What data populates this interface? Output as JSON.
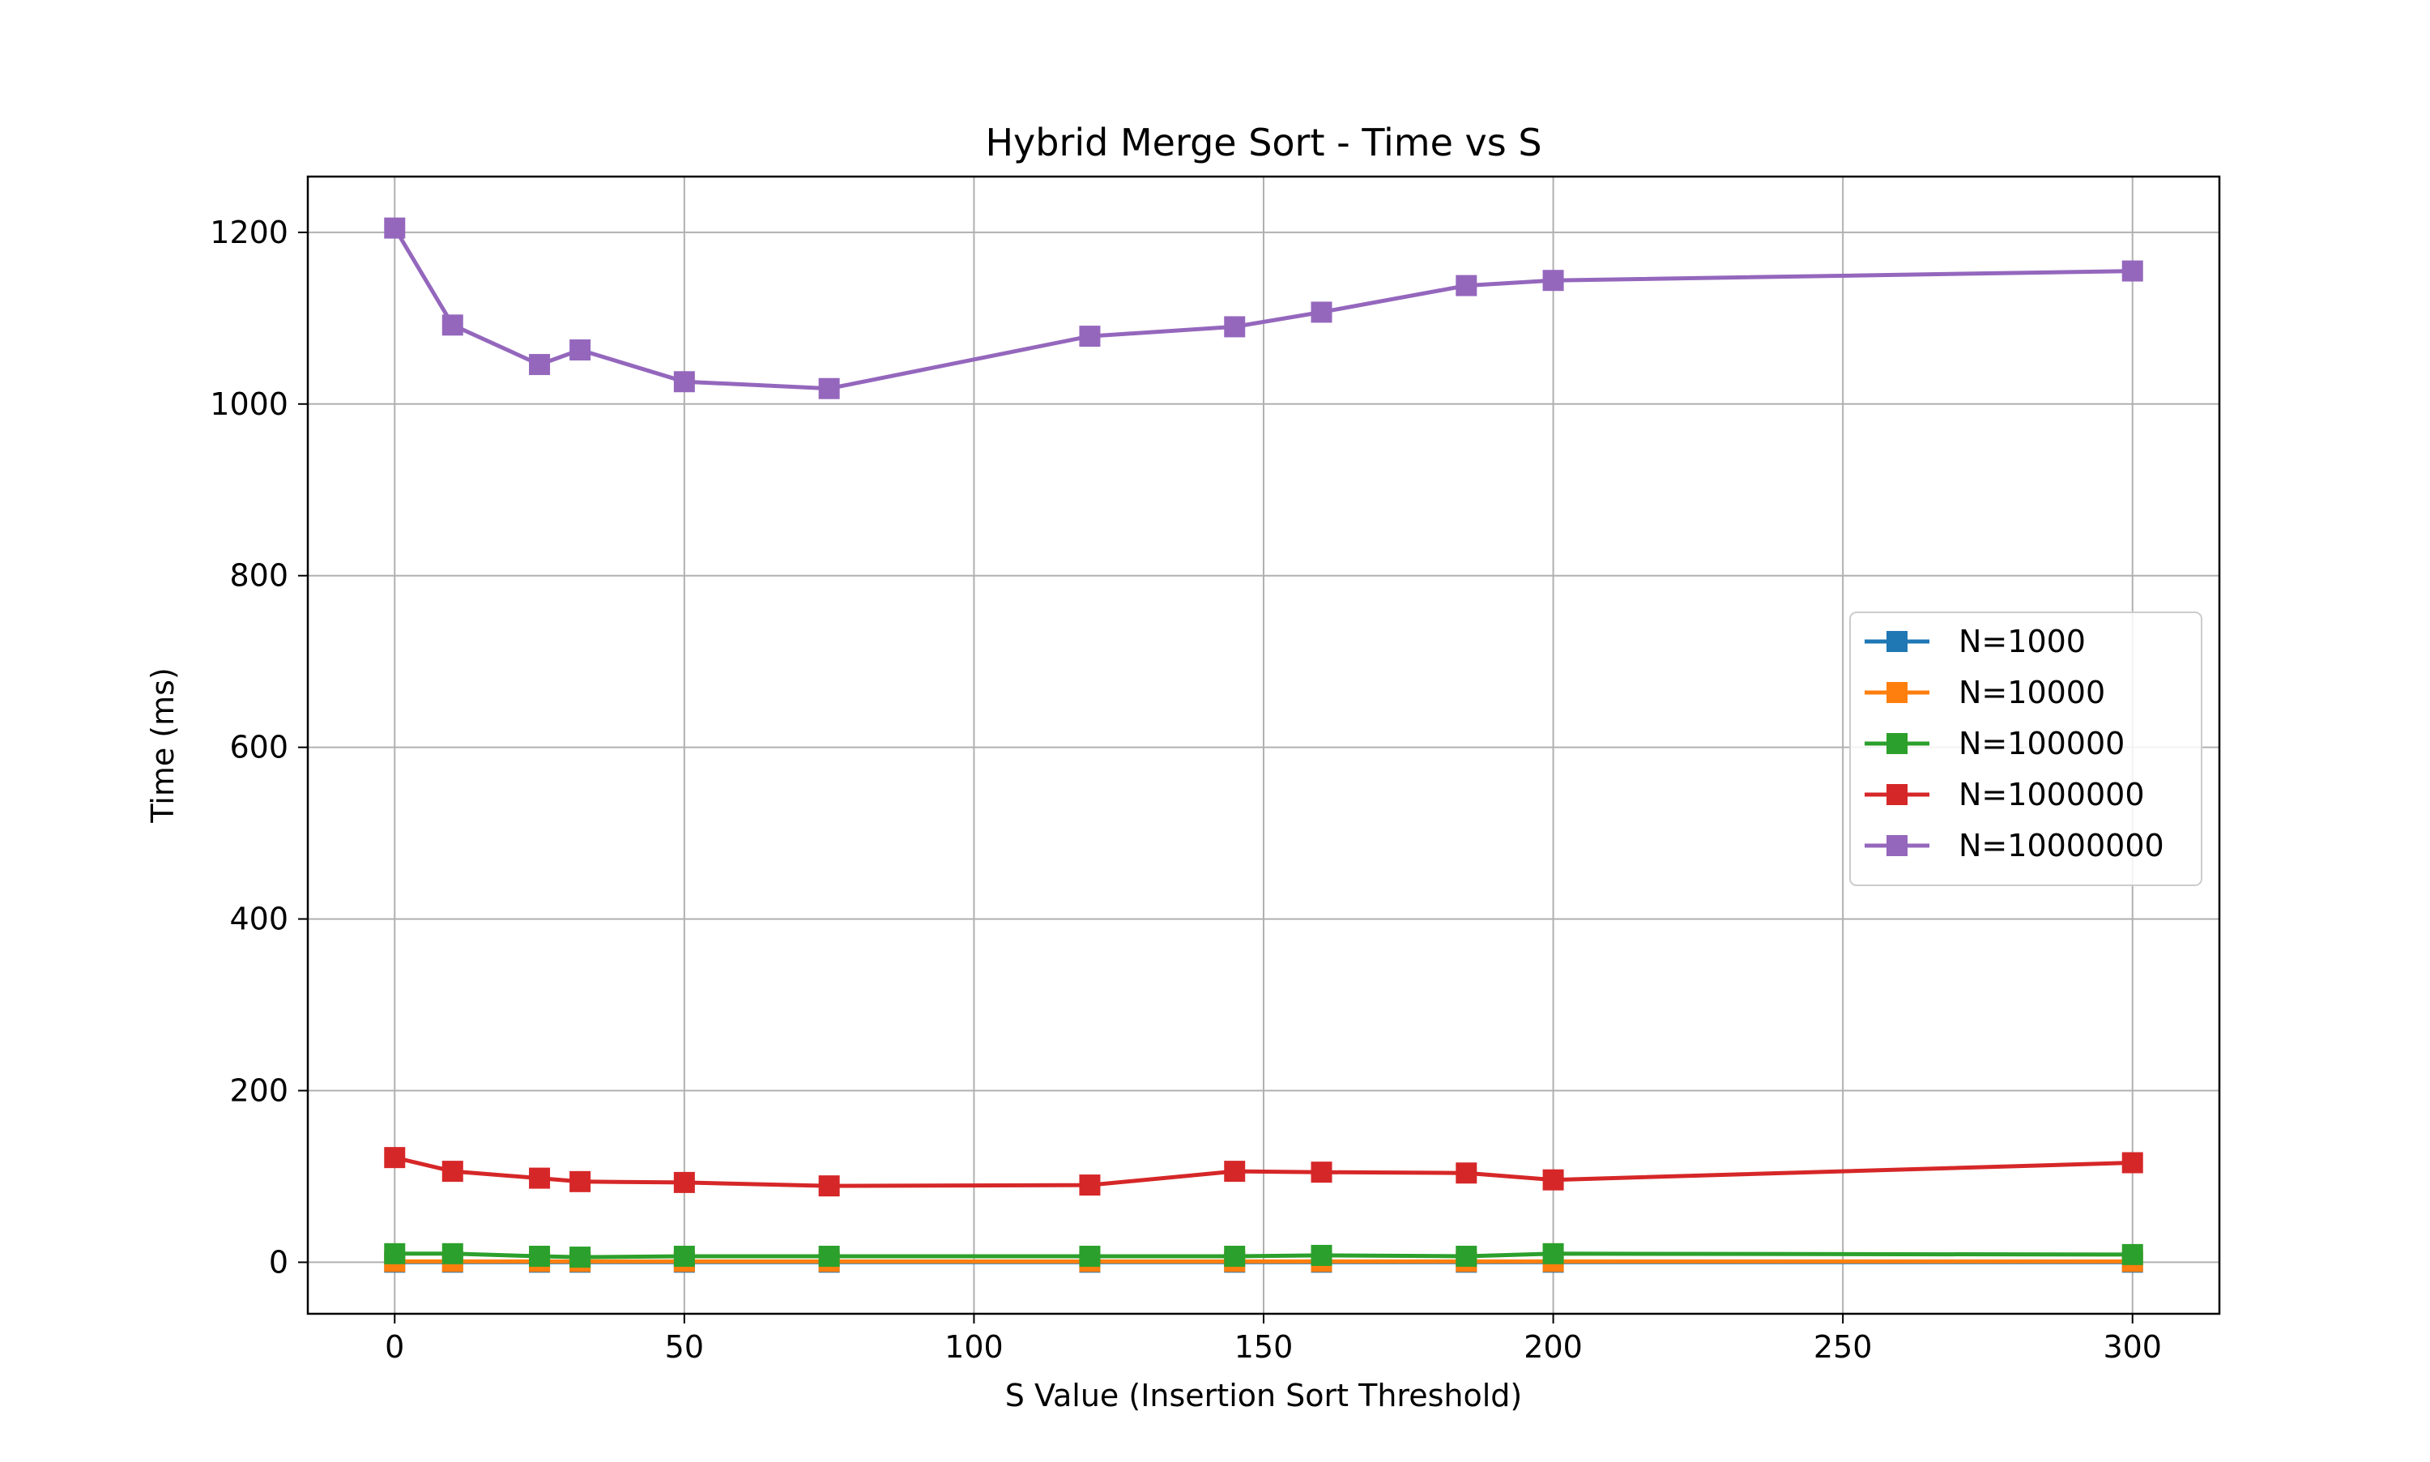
{
  "chart_data": {
    "type": "line",
    "title": "Hybrid Merge Sort - Time vs S",
    "xlabel": "S Value (Insertion Sort Threshold)",
    "ylabel": "Time (ms)",
    "xlim": [
      -15,
      315
    ],
    "ylim": [
      -60,
      1265
    ],
    "xticks": [
      0,
      50,
      100,
      150,
      200,
      250,
      300
    ],
    "yticks": [
      0,
      200,
      400,
      600,
      800,
      1000,
      1200
    ],
    "grid": true,
    "legend_position": "center-right",
    "marker": "square",
    "x": [
      0,
      10,
      25,
      32,
      50,
      75,
      120,
      145,
      160,
      185,
      200,
      300
    ],
    "series": [
      {
        "name": "N=1000",
        "color": "#1f77b4",
        "values": [
          0.1,
          0.1,
          0.1,
          0.1,
          0.1,
          0.1,
          0.1,
          0.1,
          0.1,
          0.1,
          0.1,
          0.1
        ]
      },
      {
        "name": "N=10000",
        "color": "#ff7f0e",
        "values": [
          1,
          1,
          1,
          1,
          1,
          1,
          1,
          1,
          1,
          1,
          1,
          1
        ]
      },
      {
        "name": "N=100000",
        "color": "#2ca02c",
        "values": [
          10,
          10,
          7,
          6,
          7,
          7,
          7,
          7,
          8,
          7,
          10,
          9
        ]
      },
      {
        "name": "N=1000000",
        "color": "#d62728",
        "values": [
          122,
          106,
          98,
          94,
          93,
          89,
          90,
          106,
          105,
          104,
          96,
          116
        ]
      },
      {
        "name": "N=10000000",
        "color": "#9467bd",
        "values": [
          1205,
          1092,
          1046,
          1063,
          1026,
          1018,
          1079,
          1090,
          1107,
          1138,
          1144,
          1155
        ]
      }
    ]
  }
}
